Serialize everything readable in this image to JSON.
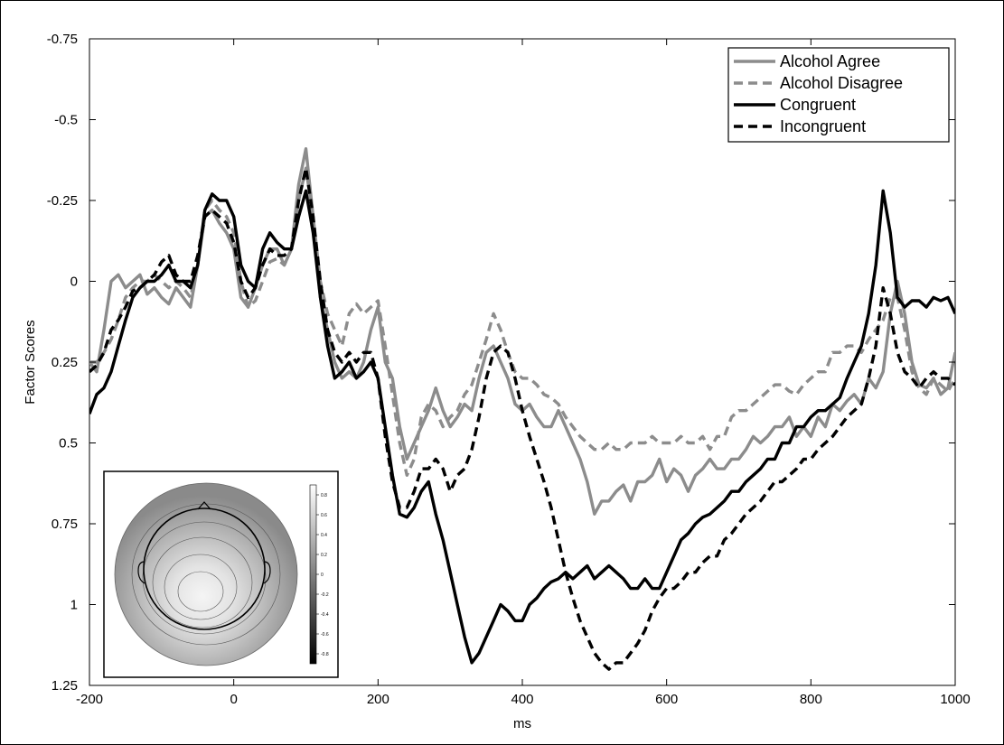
{
  "chart_data": {
    "type": "line",
    "title": "",
    "xlabel": "ms",
    "ylabel": "Factor Scores",
    "xlim": [
      -200,
      1000
    ],
    "ylim": [
      -0.75,
      1.25
    ],
    "y_inverted": true,
    "grid": false,
    "legend_position": "top-right",
    "x_ticks": [
      -200,
      0,
      200,
      400,
      600,
      800,
      1000
    ],
    "x_tick_labels": [
      "-200",
      "0",
      "200",
      "400",
      "600",
      "800",
      "1000"
    ],
    "y_ticks": [
      -0.75,
      -0.5,
      -0.25,
      0,
      0.25,
      0.5,
      0.75,
      1,
      1.25
    ],
    "y_tick_labels": [
      "-0.75",
      "-0.5",
      "-0.25",
      "0",
      "0.25",
      "0.5",
      "0.75",
      "1",
      "1.25"
    ],
    "series": [
      {
        "name": "Alcohol Agree",
        "color": "#8c8c8c",
        "dash": "solid",
        "x": [
          -200,
          -190,
          -180,
          -170,
          -160,
          -150,
          -140,
          -130,
          -120,
          -110,
          -100,
          -90,
          -80,
          -70,
          -60,
          -50,
          -40,
          -30,
          -20,
          -10,
          0,
          10,
          20,
          30,
          40,
          50,
          60,
          70,
          80,
          90,
          100,
          110,
          120,
          130,
          140,
          150,
          160,
          170,
          180,
          190,
          200,
          210,
          220,
          230,
          240,
          250,
          260,
          270,
          280,
          290,
          300,
          310,
          320,
          330,
          340,
          350,
          360,
          370,
          380,
          390,
          400,
          410,
          420,
          430,
          440,
          450,
          460,
          470,
          480,
          490,
          500,
          510,
          520,
          530,
          540,
          550,
          560,
          570,
          580,
          590,
          600,
          610,
          620,
          630,
          640,
          650,
          660,
          670,
          680,
          690,
          700,
          710,
          720,
          730,
          740,
          750,
          760,
          770,
          780,
          790,
          800,
          810,
          820,
          830,
          840,
          850,
          860,
          870,
          880,
          890,
          900,
          910,
          920,
          930,
          940,
          950,
          960,
          970,
          980,
          990,
          1000
        ],
        "y": [
          0.25,
          0.28,
          0.15,
          0.0,
          -0.02,
          0.02,
          0.0,
          -0.02,
          0.04,
          0.02,
          0.05,
          0.07,
          0.02,
          0.05,
          0.08,
          -0.05,
          -0.2,
          -0.22,
          -0.18,
          -0.15,
          -0.1,
          0.05,
          0.08,
          0.02,
          -0.05,
          -0.1,
          -0.1,
          -0.05,
          -0.1,
          -0.3,
          -0.41,
          -0.2,
          0.05,
          0.15,
          0.25,
          0.3,
          0.28,
          0.3,
          0.25,
          0.15,
          0.08,
          0.25,
          0.3,
          0.45,
          0.55,
          0.5,
          0.45,
          0.4,
          0.33,
          0.4,
          0.45,
          0.42,
          0.38,
          0.4,
          0.3,
          0.22,
          0.2,
          0.25,
          0.3,
          0.38,
          0.4,
          0.38,
          0.42,
          0.45,
          0.45,
          0.4,
          0.45,
          0.5,
          0.55,
          0.62,
          0.72,
          0.68,
          0.68,
          0.65,
          0.63,
          0.68,
          0.62,
          0.62,
          0.6,
          0.55,
          0.62,
          0.58,
          0.6,
          0.65,
          0.6,
          0.58,
          0.55,
          0.58,
          0.58,
          0.55,
          0.55,
          0.52,
          0.48,
          0.5,
          0.48,
          0.45,
          0.45,
          0.42,
          0.48,
          0.45,
          0.48,
          0.42,
          0.45,
          0.38,
          0.4,
          0.37,
          0.35,
          0.38,
          0.3,
          0.33,
          0.28,
          0.1,
          0.0,
          0.1,
          0.25,
          0.32,
          0.33,
          0.3,
          0.35,
          0.33,
          0.22
        ]
      },
      {
        "name": "Alcohol Disagree",
        "color": "#8c8c8c",
        "dash": "dashed",
        "x": [
          -200,
          -190,
          -180,
          -170,
          -160,
          -150,
          -140,
          -130,
          -120,
          -110,
          -100,
          -90,
          -80,
          -70,
          -60,
          -50,
          -40,
          -30,
          -20,
          -10,
          0,
          10,
          20,
          30,
          40,
          50,
          60,
          70,
          80,
          90,
          100,
          110,
          120,
          130,
          140,
          150,
          160,
          170,
          180,
          190,
          200,
          210,
          220,
          230,
          240,
          250,
          260,
          270,
          280,
          290,
          300,
          310,
          320,
          330,
          340,
          350,
          360,
          370,
          380,
          390,
          400,
          410,
          420,
          430,
          440,
          450,
          460,
          470,
          480,
          490,
          500,
          510,
          520,
          530,
          540,
          550,
          560,
          570,
          580,
          590,
          600,
          610,
          620,
          630,
          640,
          650,
          660,
          670,
          680,
          690,
          700,
          710,
          720,
          730,
          740,
          750,
          760,
          770,
          780,
          790,
          800,
          810,
          820,
          830,
          840,
          850,
          860,
          870,
          880,
          890,
          900,
          910,
          920,
          930,
          940,
          950,
          960,
          970,
          980,
          990,
          1000
        ],
        "y": [
          0.25,
          0.25,
          0.22,
          0.18,
          0.12,
          0.05,
          0.02,
          0.0,
          0.0,
          -0.02,
          0.0,
          0.02,
          0.0,
          0.02,
          0.05,
          -0.05,
          -0.22,
          -0.25,
          -0.22,
          -0.2,
          -0.15,
          0.0,
          0.08,
          0.06,
          0.0,
          -0.06,
          -0.07,
          -0.05,
          -0.1,
          -0.25,
          -0.35,
          -0.2,
          0.0,
          0.1,
          0.15,
          0.2,
          0.1,
          0.07,
          0.1,
          0.08,
          0.06,
          0.2,
          0.35,
          0.5,
          0.6,
          0.55,
          0.42,
          0.38,
          0.4,
          0.45,
          0.42,
          0.4,
          0.35,
          0.32,
          0.25,
          0.18,
          0.1,
          0.15,
          0.22,
          0.28,
          0.3,
          0.3,
          0.32,
          0.35,
          0.36,
          0.38,
          0.42,
          0.45,
          0.48,
          0.5,
          0.52,
          0.52,
          0.5,
          0.52,
          0.52,
          0.5,
          0.5,
          0.5,
          0.48,
          0.5,
          0.5,
          0.5,
          0.48,
          0.5,
          0.5,
          0.48,
          0.52,
          0.48,
          0.48,
          0.42,
          0.4,
          0.4,
          0.38,
          0.36,
          0.34,
          0.32,
          0.32,
          0.34,
          0.35,
          0.32,
          0.3,
          0.28,
          0.28,
          0.22,
          0.22,
          0.2,
          0.2,
          0.22,
          0.18,
          0.15,
          0.12,
          0.05,
          0.05,
          0.15,
          0.28,
          0.33,
          0.35,
          0.3,
          0.32,
          0.34,
          0.3
        ]
      },
      {
        "name": "Congruent",
        "color": "#000000",
        "dash": "solid",
        "x": [
          -200,
          -190,
          -180,
          -170,
          -160,
          -150,
          -140,
          -130,
          -120,
          -110,
          -100,
          -90,
          -80,
          -70,
          -60,
          -50,
          -40,
          -30,
          -20,
          -10,
          0,
          10,
          20,
          30,
          40,
          50,
          60,
          70,
          80,
          90,
          100,
          110,
          120,
          130,
          140,
          150,
          160,
          170,
          180,
          190,
          200,
          210,
          220,
          230,
          240,
          250,
          260,
          270,
          280,
          290,
          300,
          310,
          320,
          330,
          340,
          350,
          360,
          370,
          380,
          390,
          400,
          410,
          420,
          430,
          440,
          450,
          460,
          470,
          480,
          490,
          500,
          510,
          520,
          530,
          540,
          550,
          560,
          570,
          580,
          590,
          600,
          610,
          620,
          630,
          640,
          650,
          660,
          670,
          680,
          690,
          700,
          710,
          720,
          730,
          740,
          750,
          760,
          770,
          780,
          790,
          800,
          810,
          820,
          830,
          840,
          850,
          860,
          870,
          880,
          890,
          900,
          910,
          920,
          930,
          940,
          950,
          960,
          970,
          980,
          990,
          1000
        ],
        "y": [
          0.41,
          0.35,
          0.33,
          0.28,
          0.2,
          0.12,
          0.05,
          0.02,
          0.0,
          0.0,
          -0.02,
          -0.05,
          0.0,
          0.0,
          0.02,
          -0.05,
          -0.22,
          -0.27,
          -0.25,
          -0.25,
          -0.2,
          -0.05,
          0.0,
          0.02,
          -0.1,
          -0.15,
          -0.12,
          -0.1,
          -0.1,
          -0.2,
          -0.28,
          -0.15,
          0.05,
          0.2,
          0.3,
          0.28,
          0.25,
          0.3,
          0.28,
          0.25,
          0.3,
          0.45,
          0.6,
          0.72,
          0.73,
          0.7,
          0.65,
          0.62,
          0.72,
          0.8,
          0.9,
          1.0,
          1.1,
          1.18,
          1.15,
          1.1,
          1.05,
          1.0,
          1.02,
          1.05,
          1.05,
          1.0,
          0.98,
          0.95,
          0.93,
          0.92,
          0.9,
          0.92,
          0.9,
          0.88,
          0.92,
          0.9,
          0.88,
          0.9,
          0.92,
          0.95,
          0.95,
          0.92,
          0.95,
          0.95,
          0.9,
          0.85,
          0.8,
          0.78,
          0.75,
          0.73,
          0.72,
          0.7,
          0.68,
          0.65,
          0.65,
          0.62,
          0.6,
          0.58,
          0.55,
          0.55,
          0.5,
          0.5,
          0.45,
          0.45,
          0.42,
          0.4,
          0.4,
          0.38,
          0.36,
          0.3,
          0.25,
          0.2,
          0.1,
          -0.05,
          -0.28,
          -0.15,
          0.05,
          0.08,
          0.06,
          0.06,
          0.08,
          0.05,
          0.06,
          0.05,
          0.1
        ]
      },
      {
        "name": "Incongruent",
        "color": "#000000",
        "dash": "dashed",
        "x": [
          -200,
          -190,
          -180,
          -170,
          -160,
          -150,
          -140,
          -130,
          -120,
          -110,
          -100,
          -90,
          -80,
          -70,
          -60,
          -50,
          -40,
          -30,
          -20,
          -10,
          0,
          10,
          20,
          30,
          40,
          50,
          60,
          70,
          80,
          90,
          100,
          110,
          120,
          130,
          140,
          150,
          160,
          170,
          180,
          190,
          200,
          210,
          220,
          230,
          240,
          250,
          260,
          270,
          280,
          290,
          300,
          310,
          320,
          330,
          340,
          350,
          360,
          370,
          380,
          390,
          400,
          410,
          420,
          430,
          440,
          450,
          460,
          470,
          480,
          490,
          500,
          510,
          520,
          530,
          540,
          550,
          560,
          570,
          580,
          590,
          600,
          610,
          620,
          630,
          640,
          650,
          660,
          670,
          680,
          690,
          700,
          710,
          720,
          730,
          740,
          750,
          760,
          770,
          780,
          790,
          800,
          810,
          820,
          830,
          840,
          850,
          860,
          870,
          880,
          890,
          900,
          910,
          920,
          930,
          940,
          950,
          960,
          970,
          980,
          990,
          1000
        ],
        "y": [
          0.28,
          0.26,
          0.22,
          0.15,
          0.12,
          0.08,
          0.03,
          0.02,
          0.0,
          -0.02,
          -0.06,
          -0.08,
          -0.02,
          0.0,
          0.0,
          -0.08,
          -0.2,
          -0.22,
          -0.2,
          -0.18,
          -0.12,
          0.0,
          0.05,
          0.02,
          -0.05,
          -0.1,
          -0.08,
          -0.08,
          -0.1,
          -0.25,
          -0.35,
          -0.2,
          0.0,
          0.15,
          0.22,
          0.25,
          0.22,
          0.25,
          0.22,
          0.22,
          0.3,
          0.48,
          0.62,
          0.7,
          0.7,
          0.65,
          0.58,
          0.58,
          0.55,
          0.58,
          0.65,
          0.6,
          0.58,
          0.52,
          0.42,
          0.3,
          0.22,
          0.2,
          0.22,
          0.3,
          0.4,
          0.48,
          0.55,
          0.62,
          0.7,
          0.8,
          0.9,
          0.98,
          1.05,
          1.1,
          1.15,
          1.18,
          1.2,
          1.18,
          1.18,
          1.15,
          1.12,
          1.08,
          1.02,
          0.98,
          0.95,
          0.95,
          0.93,
          0.9,
          0.9,
          0.87,
          0.85,
          0.85,
          0.8,
          0.78,
          0.75,
          0.72,
          0.7,
          0.68,
          0.65,
          0.62,
          0.62,
          0.6,
          0.58,
          0.55,
          0.55,
          0.52,
          0.5,
          0.48,
          0.45,
          0.42,
          0.4,
          0.38,
          0.3,
          0.2,
          0.02,
          0.1,
          0.22,
          0.28,
          0.3,
          0.33,
          0.3,
          0.28,
          0.3,
          0.3,
          0.32
        ]
      }
    ],
    "inset": {
      "type": "scalp-topography",
      "colorbar_ticks": [
        "0.8",
        "0.6",
        "0.4",
        "0.2",
        "0",
        "-0.2",
        "-0.4",
        "-0.6",
        "-0.8"
      ],
      "colorbar_range": [
        -0.9,
        0.9
      ]
    }
  }
}
